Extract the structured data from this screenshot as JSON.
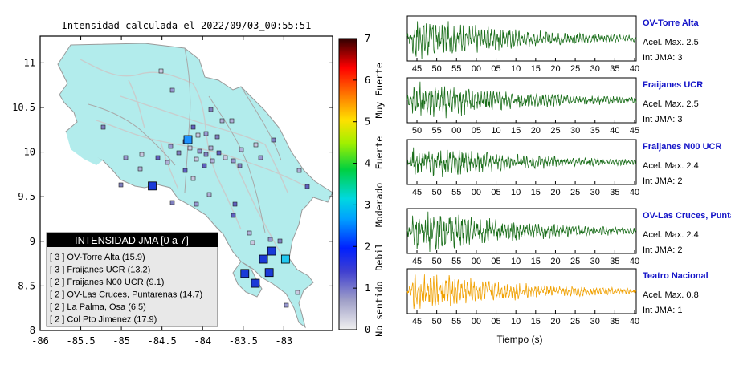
{
  "map": {
    "title": "Intensidad calculada el 2022/09/03_00:55:51",
    "x_ticks": [
      "-86",
      "-85.5",
      "-85",
      "-84.5",
      "-84",
      "-83.5",
      "-83"
    ],
    "y_ticks": [
      "8",
      "8.5",
      "9",
      "9.5",
      "10",
      "10.5",
      "11"
    ],
    "legend": {
      "title": "INTENSIDAD JMA [0 a 7]",
      "items": [
        "[ 3 ]  OV-Torre Alta (15.9)",
        "[ 3 ]  Fraijanes UCR (13.2)",
        "[ 2 ]  Fraijanes N00 UCR (9.1)",
        "[ 2 ]  OV-Las Cruces, Puntarenas (14.7)",
        "[ 2 ]  La Palma, Osa (6.5)",
        "[ 2 ]  Col Pto Jimenez (17.9)"
      ]
    },
    "colors": {
      "land": "#b2ecec",
      "border": "#aaaaaa",
      "rivers": "#c0c8c8"
    }
  },
  "colorbar": {
    "ticks": [
      "0",
      "1",
      "2",
      "3",
      "4",
      "5",
      "6",
      "7"
    ],
    "labels": [
      "No sentido",
      "Debil",
      "Moderado",
      "Fuerte",
      "Muy Fuerte"
    ],
    "colors": [
      "#f0f0f0",
      "#8080c0",
      "#2020ff",
      "#00c8ff",
      "#00d040",
      "#c0ff00",
      "#ffe000",
      "#ff8000",
      "#ff0000",
      "#400000"
    ]
  },
  "chart_data": [
    {
      "type": "scatter",
      "title": "Intensidad calculada el 2022/09/03_00:55:51",
      "xlim": [
        -86,
        -82.4
      ],
      "ylim": [
        8,
        11.3
      ],
      "points": [
        {
          "lon": -84.18,
          "lat": 10.14,
          "jma": 3
        },
        {
          "lon": -84.62,
          "lat": 9.62,
          "jma": 2
        },
        {
          "lon": -83.15,
          "lat": 8.89,
          "jma": 2
        },
        {
          "lon": -83.25,
          "lat": 8.8,
          "jma": 2
        },
        {
          "lon": -83.48,
          "lat": 8.64,
          "jma": 2
        },
        {
          "lon": -83.18,
          "lat": 8.65,
          "jma": 2
        },
        {
          "lon": -83.35,
          "lat": 8.53,
          "jma": 2
        },
        {
          "lon": -82.98,
          "lat": 8.8,
          "jma": 3
        }
      ]
    },
    {
      "type": "line",
      "panels": [
        {
          "station": "OV-Torre Alta",
          "acel": "Acel. Max. 2.5",
          "jma": "Int JMA: 3",
          "ticks": [
            "45",
            "50",
            "55",
            "00",
            "05",
            "10",
            "15",
            "20",
            "25",
            "30",
            "35",
            "40"
          ],
          "color": "#1a6e1a",
          "amp": 0.85
        },
        {
          "station": "Fraijanes UCR",
          "acel": "Acel. Max. 2.5",
          "jma": "Int JMA: 3",
          "ticks": [
            "50",
            "55",
            "00",
            "05",
            "10",
            "15",
            "20",
            "25",
            "30",
            "35",
            "40",
            "45"
          ],
          "color": "#1a6e1a",
          "amp": 0.8
        },
        {
          "station": "Fraijanes N00 UCR",
          "acel": "Acel. Max. 2.4",
          "jma": "Int JMA: 2",
          "ticks": [
            "45",
            "50",
            "55",
            "00",
            "05",
            "10",
            "15",
            "20",
            "25",
            "30",
            "35",
            "40"
          ],
          "color": "#1a6e1a",
          "amp": 0.7
        },
        {
          "station": "OV-Las Cruces, Puntar",
          "acel": "Acel. Max. 2.4",
          "jma": "Int JMA: 2",
          "ticks": [
            "45",
            "50",
            "55",
            "00",
            "05",
            "10",
            "15",
            "20",
            "25",
            "30",
            "35",
            "40"
          ],
          "color": "#1a6e1a",
          "amp": 0.85
        },
        {
          "station": "Teatro Nacional",
          "acel": "Acel. Max. 0.8",
          "jma": "Int JMA: 1",
          "ticks": [
            "45",
            "50",
            "55",
            "00",
            "05",
            "10",
            "15",
            "20",
            "25",
            "30",
            "35",
            "40"
          ],
          "color": "#f0a000",
          "amp": 0.75
        }
      ],
      "xlabel": "Tiempo (s)"
    }
  ]
}
